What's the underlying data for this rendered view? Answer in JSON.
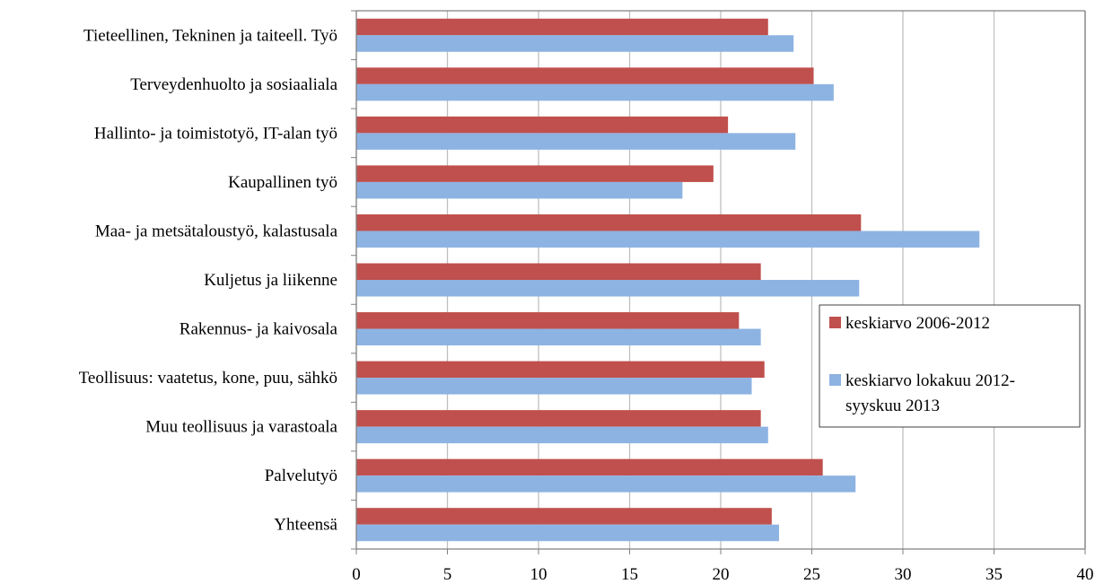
{
  "chart_data": {
    "type": "bar",
    "orientation": "horizontal",
    "categories": [
      "Tieteellinen, Tekninen ja taiteell. Työ",
      "Terveydenhuolto ja sosiaaliala",
      "Hallinto- ja toimistotyö, IT-alan työ",
      "Kaupallinen työ",
      "Maa- ja metsätaloustyö, kalastusala",
      "Kuljetus ja liikenne",
      "Rakennus- ja kaivosala",
      "Teollisuus: vaatetus, kone, puu, sähkö",
      "Muu teollisuus ja varastoala",
      "Palvelutyö",
      "Yhteensä"
    ],
    "series": [
      {
        "name": "keskiarvo 2006-2012",
        "color": "#c0504d",
        "values": [
          22.6,
          25.1,
          20.4,
          19.6,
          27.7,
          22.2,
          21.0,
          22.4,
          22.2,
          25.6,
          22.8
        ]
      },
      {
        "name": "keskiarvo lokakuu 2012-syyskuu 2013",
        "legend_lines": [
          "keskiarvo lokakuu 2012-",
          "syyskuu 2013"
        ],
        "color": "#8db3e2",
        "values": [
          24.0,
          26.2,
          24.1,
          17.9,
          34.2,
          27.6,
          22.2,
          21.7,
          22.6,
          27.4,
          23.2
        ]
      }
    ],
    "xlim": [
      0,
      40
    ],
    "xticks": [
      "0",
      "5",
      "10",
      "15",
      "20",
      "25",
      "30",
      "35",
      "40"
    ],
    "grid": "vertical",
    "legend_position": "right"
  }
}
